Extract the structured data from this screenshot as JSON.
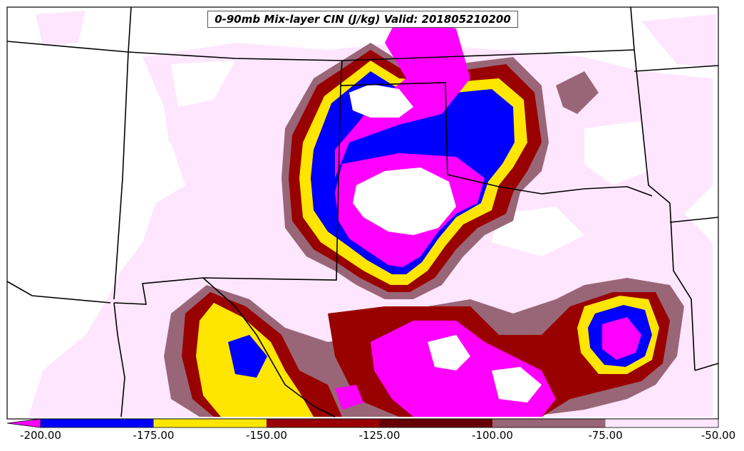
{
  "title": "0-90mb Mix-layer CIN (J/kg) Valid: 201805210200",
  "colorbar": {
    "ticks": [
      "-200.00",
      "-175.00",
      "-150.00",
      "-125.00",
      "-100.00",
      "-75.00",
      "-50.00"
    ],
    "bins": [
      {
        "range": [
          -200,
          -175
        ],
        "color": "#0000ff"
      },
      {
        "range": [
          -175,
          -150
        ],
        "color": "#ffe600"
      },
      {
        "range": [
          -150,
          -125
        ],
        "color": "#990000"
      },
      {
        "range": [
          -125,
          -100
        ],
        "color": "#660000"
      },
      {
        "range": [
          -100,
          -75
        ],
        "color": "#996677"
      },
      {
        "range": [
          -75,
          -50
        ],
        "color": "#ffe6ff"
      }
    ],
    "under_color": "#ff00ff",
    "extend": "min"
  },
  "colors": {
    "very_strong": "#ff00ff",
    "strong": "#0000ff",
    "moderate": "#ffe600",
    "dark_red": "#990000",
    "maroon": "#660000",
    "mauve": "#996677",
    "weak": "#ffe6ff"
  }
}
